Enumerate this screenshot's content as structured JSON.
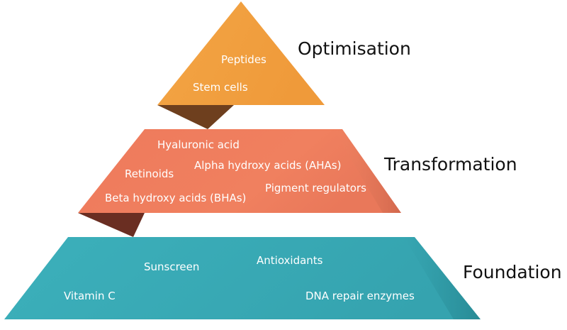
{
  "tiers": {
    "optimisation": {
      "label": "Optimisation",
      "items": [
        "Peptides",
        "Stem cells"
      ],
      "color": "#f2a343"
    },
    "transformation": {
      "label": "Transformation",
      "items": [
        "Hyaluronic acid",
        "Retinoids",
        "Alpha hydroxy acids (AHAs)",
        "Pigment regulators",
        "Beta hydroxy acids (BHAs)"
      ],
      "color": "#ef7d5f"
    },
    "foundation": {
      "label": "Foundation",
      "items": [
        "Sunscreen",
        "Antioxidants",
        "Vitamin C",
        "DNA repair enzymes"
      ],
      "color": "#3aaab6"
    }
  }
}
